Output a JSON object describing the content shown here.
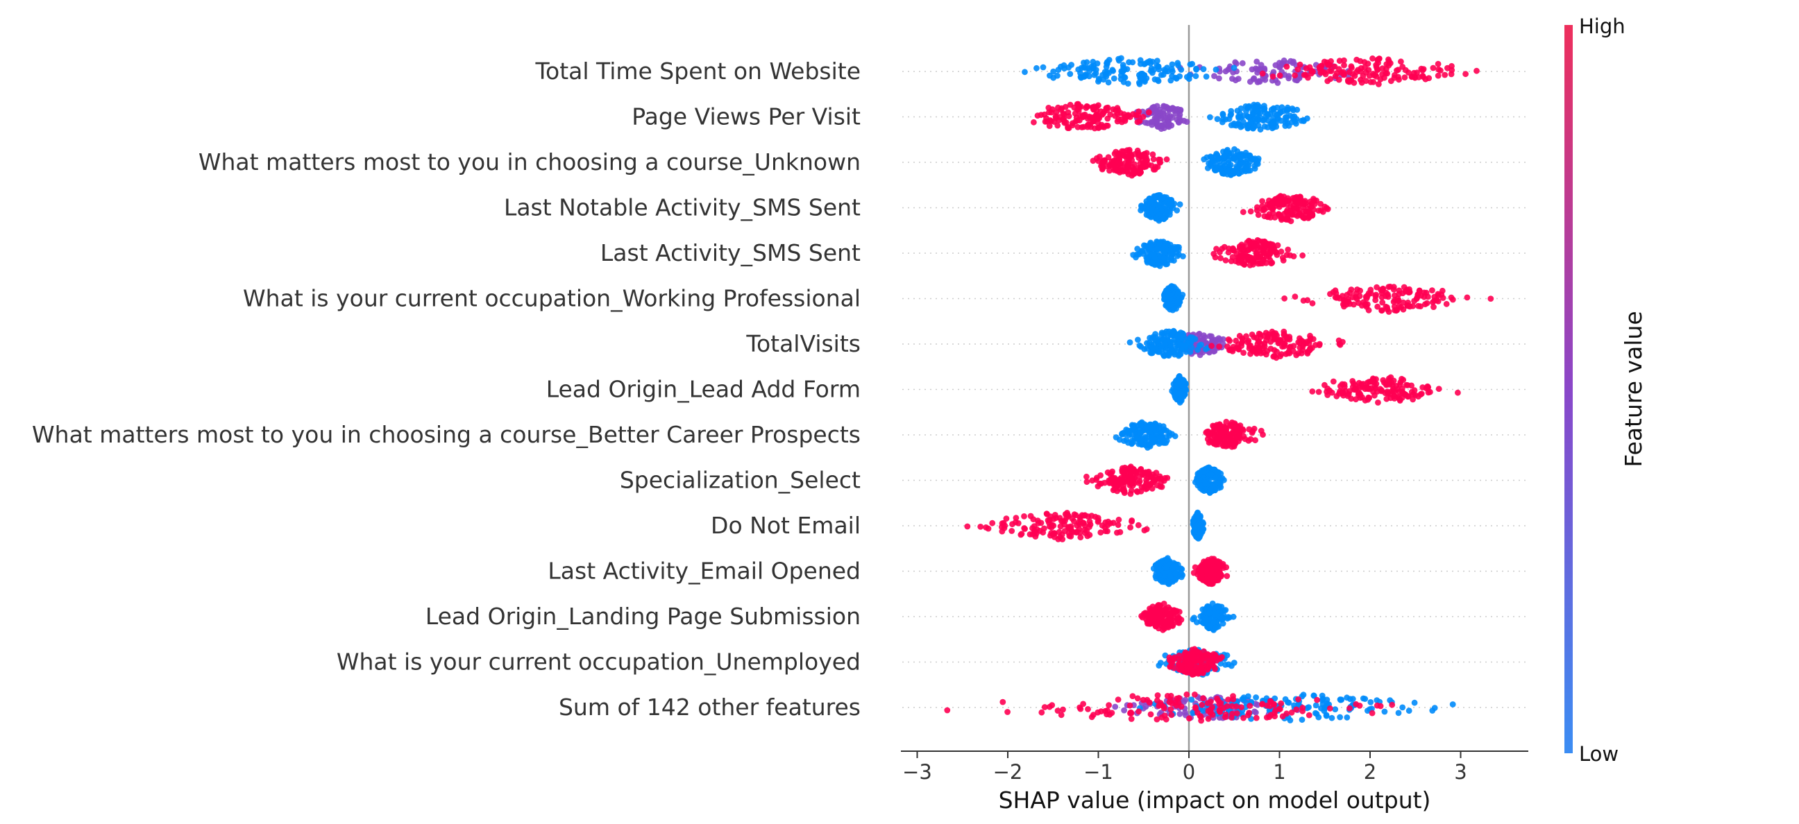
{
  "chart_data": {
    "type": "scatter",
    "subtype": "shap-beeswarm",
    "xlabel": "SHAP value (impact on model output)",
    "xlim": [
      -3.3,
      3.7
    ],
    "xticks": [
      -3,
      -2,
      -1,
      0,
      1,
      2,
      3
    ],
    "colorbar": {
      "title": "Feature value",
      "high_label": "High",
      "low_label": "Low",
      "high_color": "#ff0052",
      "low_color": "#008bfb"
    },
    "colors": {
      "high": "#ff0052",
      "low": "#008bfb",
      "zero_line": "#999999"
    },
    "features": [
      {
        "name": "Total Time Spent on Website",
        "low_range": [
          -1.95,
          0.6
        ],
        "high_range": [
          0.6,
          3.35
        ],
        "mid_range": [
          -0.4,
          2.2
        ]
      },
      {
        "name": "Page Views Per Visit",
        "low_range": [
          0.1,
          1.5
        ],
        "high_range": [
          -2.05,
          -0.3
        ],
        "mid_range": [
          -0.7,
          0.1
        ]
      },
      {
        "name": "What matters most to you in choosing a course_Unknown",
        "low_range": [
          0.05,
          0.9
        ],
        "high_range": [
          -1.15,
          -0.15
        ]
      },
      {
        "name": "Last Notable Activity_SMS Sent",
        "low_range": [
          -0.62,
          -0.05
        ],
        "high_range": [
          0.5,
          1.75
        ]
      },
      {
        "name": "Last Activity_SMS Sent",
        "low_range": [
          -0.65,
          0.0
        ],
        "high_range": [
          0.15,
          1.3
        ]
      },
      {
        "name": "What is your current occupation_Working Professional",
        "low_range": [
          -0.32,
          -0.05
        ],
        "high_range": [
          0.95,
          3.4
        ]
      },
      {
        "name": "TotalVisits",
        "low_range": [
          -0.7,
          0.3
        ],
        "high_range": [
          0.1,
          1.85
        ],
        "mid_range": [
          -0.3,
          0.5
        ]
      },
      {
        "name": "Lead Origin_Lead Add Form",
        "low_range": [
          -0.2,
          0.0
        ],
        "high_range": [
          1.1,
          3.15
        ]
      },
      {
        "name": "What matters most to you in choosing a course_Better Career Prospects",
        "low_range": [
          -0.9,
          -0.05
        ],
        "high_range": [
          0.02,
          0.85
        ]
      },
      {
        "name": "Specialization_Select",
        "low_range": [
          0.0,
          0.45
        ],
        "high_range": [
          -1.2,
          -0.1
        ]
      },
      {
        "name": "Do Not Email",
        "low_range": [
          0.02,
          0.18
        ],
        "high_range": [
          -2.5,
          -0.3
        ]
      },
      {
        "name": "Last Activity_Email Opened",
        "low_range": [
          -0.45,
          -0.02
        ],
        "high_range": [
          0.02,
          0.48
        ]
      },
      {
        "name": "Lead Origin_Landing Page Submission",
        "low_range": [
          0.02,
          0.52
        ],
        "high_range": [
          -0.6,
          0.0
        ]
      },
      {
        "name": "What is your current occupation_Unemployed",
        "low_range": [
          -0.45,
          0.65
        ],
        "high_range": [
          -0.3,
          0.45
        ]
      },
      {
        "name": "Sum of 142 other features",
        "low_range": [
          -1.0,
          3.25
        ],
        "high_range": [
          -2.9,
          2.8
        ],
        "mid_range": [
          -1.0,
          1.5
        ]
      }
    ]
  }
}
